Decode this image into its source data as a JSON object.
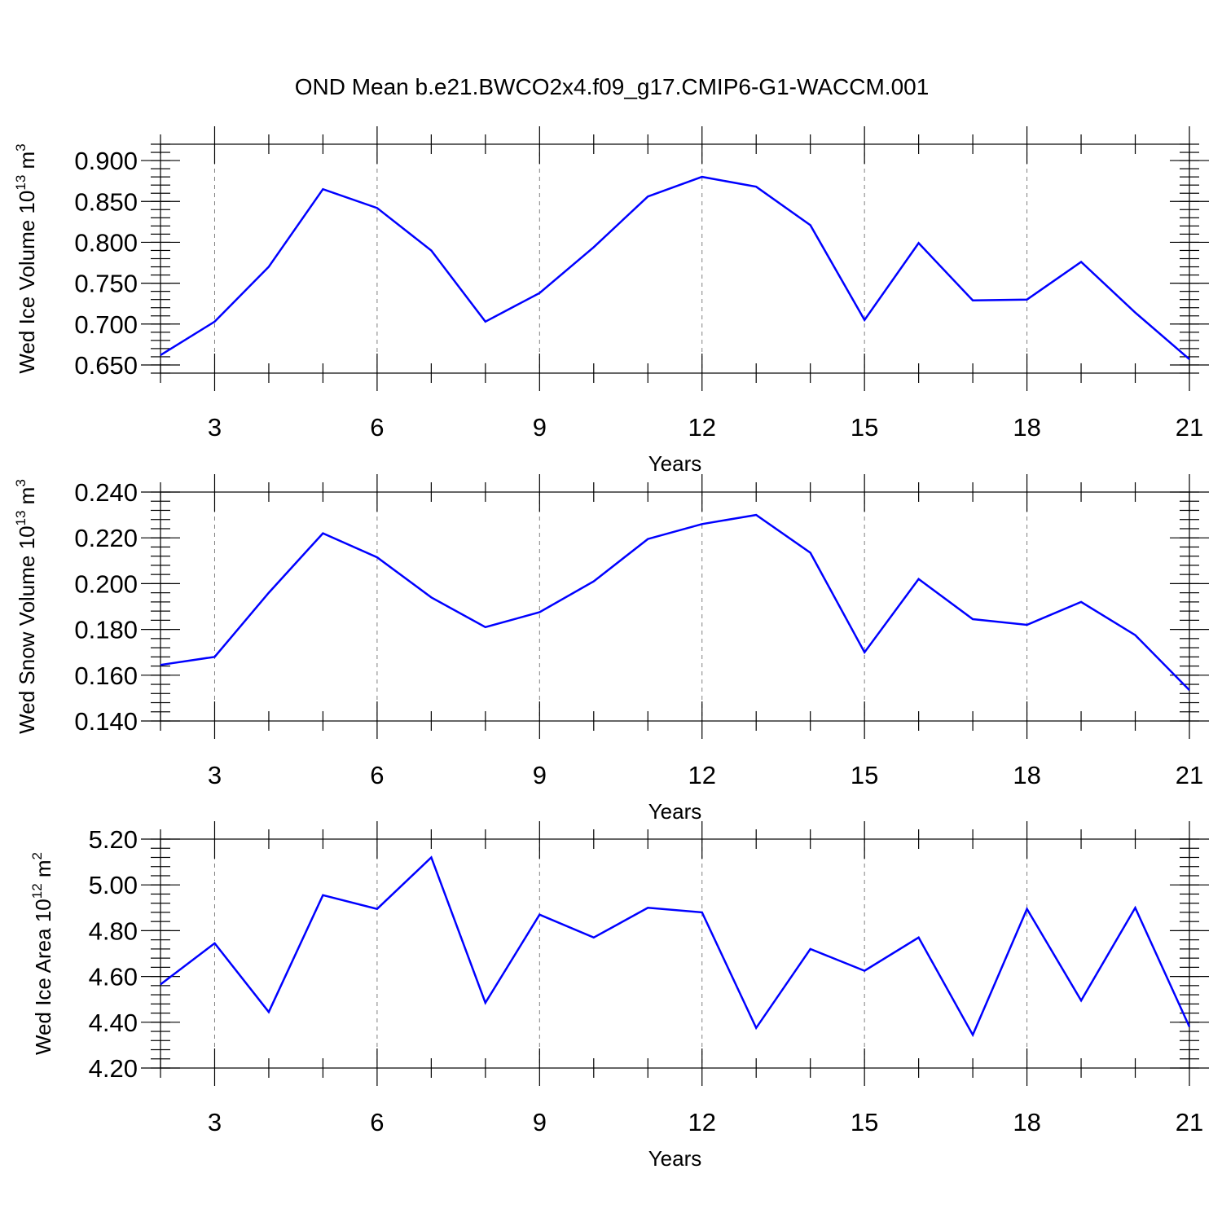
{
  "title": "OND Mean b.e21.BWCO2x4.f09_g17.CMIP6-G1-WACCM.001",
  "colors": {
    "line": "#0000ff",
    "grid": "#808080",
    "frame": "#000000"
  },
  "chart_data": [
    {
      "type": "line",
      "title": "",
      "xlabel": "Years",
      "ylabel": "Wed Ice Volume 10",
      "ylabel_exp": "13",
      "ylabel_unit": " m",
      "ylabel_unit_exp": "3",
      "xlim": [
        2,
        21
      ],
      "ylim": [
        0.64,
        0.92
      ],
      "x_ticks": [
        3,
        6,
        9,
        12,
        15,
        18,
        21
      ],
      "y_ticks": [
        0.65,
        0.7,
        0.75,
        0.8,
        0.85,
        0.9
      ],
      "y_tick_labels": [
        "0.650",
        "0.700",
        "0.750",
        "0.800",
        "0.850",
        "0.900"
      ],
      "y_minor_step": 0.01,
      "grid": "vertical dashed at major x ticks",
      "series": [
        {
          "x": [
            2,
            3,
            4,
            5,
            6,
            7,
            8,
            9,
            10,
            11,
            12,
            13,
            14,
            15,
            16,
            17,
            18,
            19,
            20,
            21
          ],
          "values": [
            0.662,
            0.703,
            0.77,
            0.865,
            0.842,
            0.79,
            0.703,
            0.738,
            0.794,
            0.856,
            0.88,
            0.868,
            0.821,
            0.705,
            0.799,
            0.729,
            0.73,
            0.776,
            0.714,
            0.657
          ]
        }
      ]
    },
    {
      "type": "line",
      "title": "",
      "xlabel": "Years",
      "ylabel": "Wed Snow Volume 10",
      "ylabel_exp": "13",
      "ylabel_unit": " m",
      "ylabel_unit_exp": "3",
      "xlim": [
        2,
        21
      ],
      "ylim": [
        0.14,
        0.24
      ],
      "x_ticks": [
        3,
        6,
        9,
        12,
        15,
        18,
        21
      ],
      "y_ticks": [
        0.14,
        0.16,
        0.18,
        0.2,
        0.22,
        0.24
      ],
      "y_tick_labels": [
        "0.140",
        "0.160",
        "0.180",
        "0.200",
        "0.220",
        "0.240"
      ],
      "y_minor_step": 0.004,
      "grid": "vertical dashed at major x ticks",
      "series": [
        {
          "x": [
            2,
            3,
            4,
            5,
            6,
            7,
            8,
            9,
            10,
            11,
            12,
            13,
            14,
            15,
            16,
            17,
            18,
            19,
            20,
            21
          ],
          "values": [
            0.1645,
            0.168,
            0.196,
            0.222,
            0.2115,
            0.194,
            0.181,
            0.1875,
            0.201,
            0.2195,
            0.226,
            0.23,
            0.2135,
            0.17,
            0.202,
            0.1845,
            0.182,
            0.192,
            0.1775,
            0.1535
          ]
        }
      ]
    },
    {
      "type": "line",
      "title": "",
      "xlabel": "Years",
      "ylabel": "Wed Ice Area 10",
      "ylabel_exp": "12",
      "ylabel_unit": " m",
      "ylabel_unit_exp": "2",
      "xlim": [
        2,
        21
      ],
      "ylim": [
        4.2,
        5.2
      ],
      "x_ticks": [
        3,
        6,
        9,
        12,
        15,
        18,
        21
      ],
      "y_ticks": [
        4.2,
        4.4,
        4.6,
        4.8,
        5.0,
        5.2
      ],
      "y_tick_labels": [
        "4.20",
        "4.40",
        "4.60",
        "4.80",
        "5.00",
        "5.20"
      ],
      "y_minor_step": 0.04,
      "grid": "vertical dashed at major x ticks",
      "series": [
        {
          "x": [
            2,
            3,
            4,
            5,
            6,
            7,
            8,
            9,
            10,
            11,
            12,
            13,
            14,
            15,
            16,
            17,
            18,
            19,
            20,
            21
          ],
          "values": [
            4.565,
            4.745,
            4.445,
            4.955,
            4.895,
            5.12,
            4.485,
            4.87,
            4.77,
            4.9,
            4.88,
            4.375,
            4.72,
            4.625,
            4.77,
            4.345,
            4.895,
            4.495,
            4.9,
            4.38
          ]
        }
      ]
    }
  ]
}
